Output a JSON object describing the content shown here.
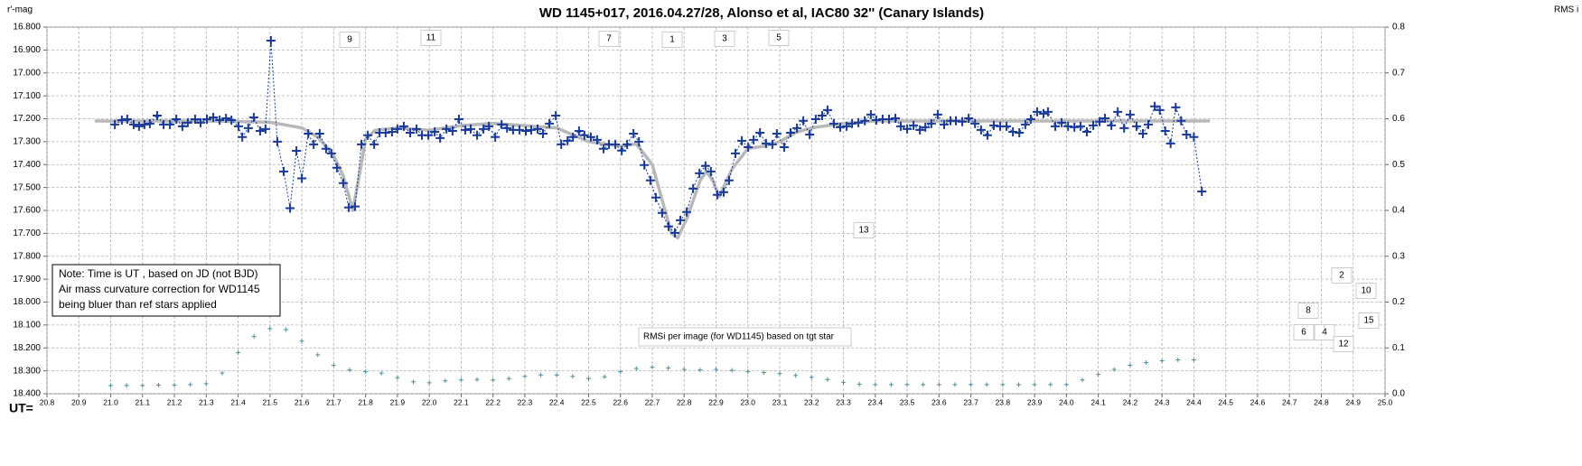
{
  "chart_data": {
    "type": "line",
    "title": "WD 1145+017,  2016.04.27/28,  Alonso  et al, IAC80  32'' (Canary Islands)",
    "ylabel": "r'-mag",
    "y2label": "RMS i",
    "xlabel": "UT=",
    "grid": true,
    "xlim": [
      20.8,
      25.0
    ],
    "xticks": [
      20.8,
      20.9,
      {
        "value": 21,
        "label": "21.0"
      },
      21.1,
      21.2,
      21.3,
      21.4,
      21.5,
      21.6,
      21.7,
      21.8,
      21.9,
      {
        "value": 22,
        "label": "22.0"
      },
      22.1,
      22.2,
      22.3,
      22.4,
      22.5,
      22.6,
      22.7,
      22.8,
      22.9,
      {
        "value": 23,
        "label": "23.0"
      },
      23.1,
      23.2,
      23.3,
      23.4,
      23.5,
      23.6,
      23.7,
      23.8,
      23.9,
      {
        "value": 24,
        "label": "24.0"
      },
      24.1,
      24.2,
      24.3,
      24.4,
      24.5,
      24.6,
      24.7,
      24.8,
      24.9,
      {
        "value": 25,
        "label": "25.0"
      }
    ],
    "ylim": [
      18.4,
      16.8
    ],
    "yticks": [
      {
        "value": 16.8,
        "label": "16.800"
      },
      {
        "value": 16.9,
        "label": "16.900"
      },
      {
        "value": 17,
        "label": "17.000"
      },
      {
        "value": 17.1,
        "label": "17.100"
      },
      {
        "value": 17.2,
        "label": "17.200"
      },
      {
        "value": 17.3,
        "label": "17.300"
      },
      {
        "value": 17.4,
        "label": "17.400"
      },
      {
        "value": 17.5,
        "label": "17.500"
      },
      {
        "value": 17.6,
        "label": "17.600"
      },
      {
        "value": 17.7,
        "label": "17.700"
      },
      {
        "value": 17.8,
        "label": "17.800"
      },
      {
        "value": 17.9,
        "label": "17.900"
      },
      {
        "value": 18,
        "label": "18.000"
      },
      {
        "value": 18.1,
        "label": "18.100"
      },
      {
        "value": 18.2,
        "label": "18.200"
      },
      {
        "value": 18.3,
        "label": "18.300"
      },
      {
        "value": 18.4,
        "label": "18.400"
      }
    ],
    "y2lim": [
      0,
      0.8
    ],
    "y2ticks": [
      {
        "value": 0,
        "label": "0.0"
      },
      0.1,
      0.2,
      0.3,
      0.4,
      0.5,
      0.6,
      0.7,
      0.8
    ],
    "series": [
      {
        "color": "#b8b8b8",
        "line": "solid",
        "marker": "none",
        "x": [
          20.95,
          21.3,
          21.5,
          21.6,
          21.65,
          21.7,
          21.73,
          21.76,
          21.78,
          21.8,
          21.83,
          21.9,
          22.0,
          22.1,
          22.2,
          22.3,
          22.4,
          22.5,
          22.6,
          22.65,
          22.7,
          22.73,
          22.76,
          22.78,
          22.81,
          22.85,
          22.87,
          22.89,
          22.91,
          22.95,
          23.0,
          23.05,
          23.1,
          23.15,
          23.2,
          23.3,
          23.4,
          24.45
        ],
        "values": [
          17.21,
          17.21,
          17.215,
          17.24,
          17.28,
          17.36,
          17.45,
          17.6,
          17.45,
          17.29,
          17.25,
          17.24,
          17.25,
          17.23,
          17.22,
          17.23,
          17.24,
          17.3,
          17.32,
          17.31,
          17.4,
          17.55,
          17.7,
          17.72,
          17.63,
          17.47,
          17.43,
          17.47,
          17.54,
          17.42,
          17.33,
          17.32,
          17.3,
          17.26,
          17.24,
          17.22,
          17.21,
          17.21
        ]
      },
      {
        "color": "#1a3a9a",
        "line": "dotted",
        "marker": "cross",
        "x": [
          21.013,
          21.035,
          21.052,
          21.072,
          21.089,
          21.106,
          21.123,
          21.146,
          21.166,
          21.186,
          21.206,
          21.225,
          21.242,
          21.265,
          21.282,
          21.302,
          21.322,
          21.342,
          21.362,
          21.379,
          21.401,
          21.413,
          21.432,
          21.449,
          21.469,
          21.486,
          21.503,
          21.523,
          21.543,
          21.563,
          21.583,
          21.6,
          21.62,
          21.637,
          21.656,
          21.676,
          21.693,
          21.71,
          21.73,
          21.747,
          21.767,
          21.787,
          21.807,
          21.827,
          21.844,
          21.863,
          21.883,
          21.9,
          21.92,
          21.94,
          21.96,
          21.977,
          21.997,
          22.017,
          22.034,
          22.054,
          22.073,
          22.093,
          22.113,
          22.13,
          22.15,
          22.17,
          22.187,
          22.207,
          22.227,
          22.244,
          22.263,
          22.283,
          22.303,
          22.32,
          22.34,
          22.357,
          22.377,
          22.397,
          22.414,
          22.434,
          22.451,
          22.47,
          22.487,
          22.507,
          22.527,
          22.547,
          22.564,
          22.584,
          22.604,
          22.621,
          22.641,
          22.658,
          22.675,
          22.694,
          22.711,
          22.731,
          22.751,
          22.771,
          22.788,
          22.808,
          22.828,
          22.848,
          22.867,
          22.884,
          22.904,
          22.924,
          22.941,
          22.961,
          22.981,
          23.001,
          23.018,
          23.038,
          23.057,
          23.077,
          23.091,
          23.114,
          23.134,
          23.154,
          23.174,
          23.194,
          23.213,
          23.233,
          23.25,
          23.27,
          23.29,
          23.31,
          23.327,
          23.347,
          23.367,
          23.386,
          23.403,
          23.423,
          23.443,
          23.463,
          23.48,
          23.5,
          23.52,
          23.54,
          23.557,
          23.576,
          23.596,
          23.616,
          23.636,
          23.653,
          23.673,
          23.693,
          23.713,
          23.732,
          23.752,
          23.772,
          23.792,
          23.812,
          23.832,
          23.852,
          23.871,
          23.888,
          23.908,
          23.928,
          23.942,
          23.965,
          23.985,
          24.005,
          24.025,
          24.044,
          24.064,
          24.084,
          24.104,
          24.121,
          24.141,
          24.161,
          24.181,
          24.2,
          24.22,
          24.24,
          24.257,
          24.277,
          24.293,
          24.31,
          24.327,
          24.343,
          24.36,
          24.377,
          24.4,
          24.425
        ],
        "values": [
          17.225,
          17.206,
          17.202,
          17.225,
          17.233,
          17.225,
          17.221,
          17.186,
          17.225,
          17.225,
          17.202,
          17.233,
          17.217,
          17.202,
          17.217,
          17.202,
          17.194,
          17.206,
          17.198,
          17.206,
          17.233,
          17.28,
          17.241,
          17.194,
          17.253,
          17.245,
          16.859,
          17.3,
          17.43,
          17.59,
          17.34,
          17.46,
          17.265,
          17.312,
          17.265,
          17.331,
          17.351,
          17.414,
          17.481,
          17.587,
          17.583,
          17.312,
          17.272,
          17.312,
          17.261,
          17.261,
          17.257,
          17.245,
          17.233,
          17.261,
          17.245,
          17.272,
          17.272,
          17.257,
          17.284,
          17.245,
          17.253,
          17.202,
          17.249,
          17.245,
          17.272,
          17.245,
          17.233,
          17.28,
          17.225,
          17.241,
          17.249,
          17.249,
          17.253,
          17.249,
          17.245,
          17.265,
          17.221,
          17.186,
          17.312,
          17.296,
          17.28,
          17.253,
          17.272,
          17.28,
          17.292,
          17.331,
          17.312,
          17.312,
          17.339,
          17.312,
          17.265,
          17.3,
          17.402,
          17.469,
          17.544,
          17.611,
          17.67,
          17.698,
          17.643,
          17.607,
          17.505,
          17.438,
          17.406,
          17.43,
          17.532,
          17.52,
          17.469,
          17.351,
          17.296,
          17.324,
          17.292,
          17.261,
          17.308,
          17.312,
          17.265,
          17.324,
          17.261,
          17.241,
          17.209,
          17.269,
          17.202,
          17.186,
          17.162,
          17.221,
          17.237,
          17.233,
          17.221,
          17.217,
          17.209,
          17.182,
          17.206,
          17.202,
          17.202,
          17.198,
          17.233,
          17.245,
          17.229,
          17.249,
          17.237,
          17.221,
          17.182,
          17.225,
          17.209,
          17.209,
          17.213,
          17.198,
          17.221,
          17.249,
          17.272,
          17.229,
          17.233,
          17.233,
          17.257,
          17.261,
          17.225,
          17.202,
          17.17,
          17.178,
          17.17,
          17.233,
          17.217,
          17.233,
          17.237,
          17.233,
          17.257,
          17.229,
          17.213,
          17.198,
          17.229,
          17.17,
          17.241,
          17.182,
          17.233,
          17.265,
          17.225,
          17.146,
          17.162,
          17.253,
          17.308,
          17.15,
          17.209,
          17.269,
          17.28,
          17.517
        ]
      },
      {
        "color": "#4f8f9a",
        "line": "none",
        "marker": "small-cross",
        "axis": "y2",
        "x": [
          21.0,
          21.05,
          21.1,
          21.15,
          21.2,
          21.25,
          21.3,
          21.35,
          21.4,
          21.45,
          21.5,
          21.55,
          21.6,
          21.65,
          21.7,
          21.75,
          21.8,
          21.85,
          21.9,
          21.95,
          22.0,
          22.05,
          22.1,
          22.15,
          22.2,
          22.25,
          22.3,
          22.35,
          22.4,
          22.45,
          22.5,
          22.55,
          22.6,
          22.65,
          22.7,
          22.75,
          22.8,
          22.85,
          22.9,
          22.95,
          23.0,
          23.05,
          23.1,
          23.15,
          23.2,
          23.25,
          23.3,
          23.35,
          23.4,
          23.45,
          23.5,
          23.55,
          23.6,
          23.65,
          23.7,
          23.75,
          23.8,
          23.85,
          23.9,
          23.95,
          24.0,
          24.05,
          24.1,
          24.15,
          24.2,
          24.25,
          24.3,
          24.35,
          24.4
        ],
        "values": [
          0.018,
          0.018,
          0.018,
          0.019,
          0.019,
          0.02,
          0.022,
          0.045,
          0.09,
          0.125,
          0.142,
          0.14,
          0.115,
          0.085,
          0.062,
          0.052,
          0.048,
          0.045,
          0.035,
          0.026,
          0.024,
          0.028,
          0.03,
          0.031,
          0.03,
          0.033,
          0.038,
          0.041,
          0.041,
          0.038,
          0.033,
          0.037,
          0.048,
          0.055,
          0.058,
          0.056,
          0.053,
          0.052,
          0.053,
          0.051,
          0.048,
          0.046,
          0.044,
          0.04,
          0.036,
          0.031,
          0.025,
          0.021,
          0.02,
          0.02,
          0.02,
          0.02,
          0.02,
          0.02,
          0.02,
          0.02,
          0.02,
          0.02,
          0.02,
          0.02,
          0.02,
          0.03,
          0.042,
          0.053,
          0.062,
          0.068,
          0.072,
          0.074,
          0.074
        ]
      }
    ],
    "annotations": [
      "9",
      "11",
      "7",
      "1",
      "3",
      "5",
      "13",
      "2",
      "10",
      "8",
      "15",
      "6",
      "4",
      "12"
    ],
    "rms_note": "RMSi per image (for WD1145) based on tgt star",
    "note": [
      "Note: Time is UT , based on JD (not BJD)",
      "Air mass  curvature correction for WD1145",
      "being bluer than ref stars applied"
    ]
  }
}
